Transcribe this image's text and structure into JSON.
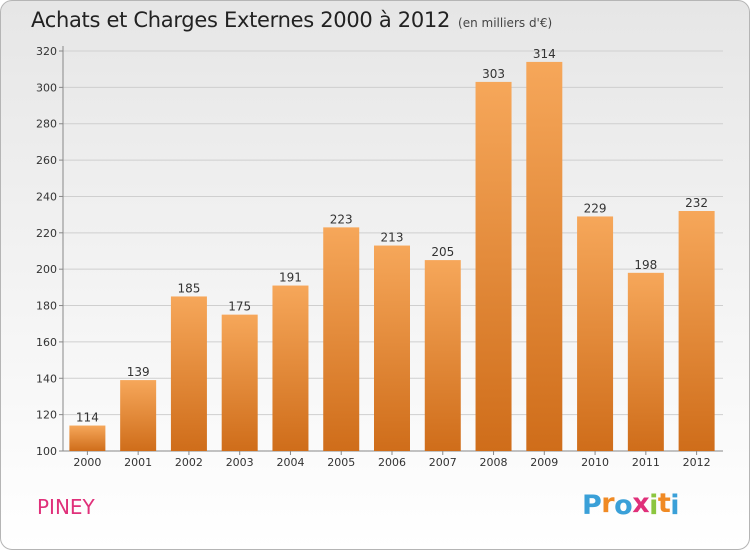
{
  "title": "Achats et Charges Externes 2000 à 2012",
  "unit_label": "(en milliers d'€)",
  "commune": "PINEY",
  "brand": {
    "letters": [
      "P",
      "r",
      "o",
      "x",
      "i",
      "t",
      "i"
    ],
    "colors": [
      "#3aa0d8",
      "#f08a24",
      "#3aa0d8",
      "#e0307a",
      "#8cc63f",
      "#f08a24",
      "#3aa0d8"
    ]
  },
  "colors": {
    "bar_light": "#f6a75a",
    "bar_dark": "#cf6d1a",
    "commune": "#e0307a"
  },
  "chart_data": {
    "type": "bar",
    "categories": [
      "2000",
      "2001",
      "2002",
      "2003",
      "2004",
      "2005",
      "2006",
      "2007",
      "2008",
      "2009",
      "2010",
      "2011",
      "2012"
    ],
    "values": [
      114,
      139,
      185,
      175,
      191,
      223,
      213,
      205,
      303,
      314,
      229,
      198,
      232
    ],
    "ylim": [
      100,
      320
    ],
    "yticks": [
      100,
      120,
      140,
      160,
      180,
      200,
      220,
      240,
      260,
      280,
      300,
      320
    ],
    "grid": true,
    "data_labels": true
  }
}
